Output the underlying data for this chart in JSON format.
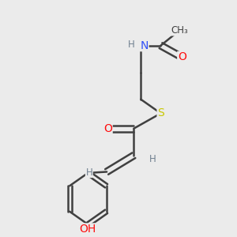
{
  "background_color": "#ebebeb",
  "atom_colors": {
    "N": "#3050F8",
    "O": "#FF0D0D",
    "S": "#C8C800",
    "C": "#404040",
    "H": "#708090"
  },
  "bond_color": "#404040",
  "figsize": [
    3.0,
    3.0
  ],
  "dpi": 100
}
